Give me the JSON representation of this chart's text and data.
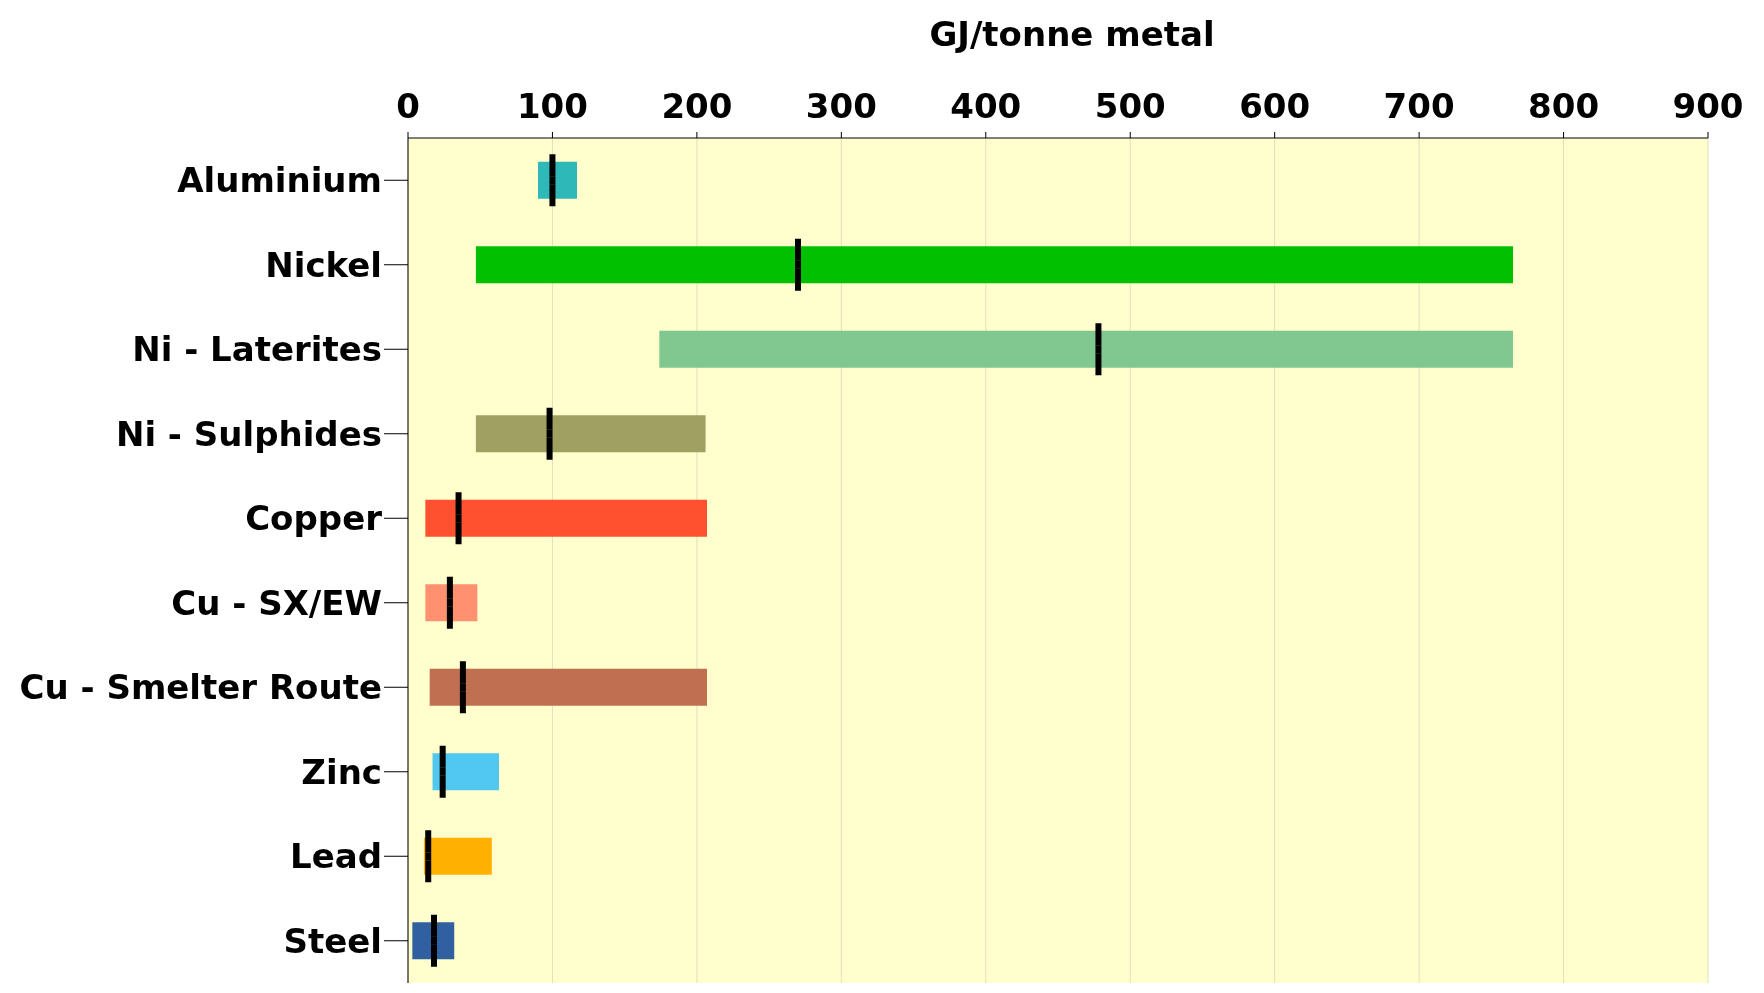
{
  "chart_data": {
    "type": "bar",
    "orientation": "horizontal",
    "xlabel": "GJ/tonne metal",
    "categories": [
      "Aluminium",
      "Nickel",
      "Ni - Laterites",
      "Ni - Sulphides",
      "Copper",
      "Cu - SX/EW",
      "Cu - Smelter Route",
      "Zinc",
      "Lead",
      "Steel"
    ],
    "series": [
      {
        "type": "bar",
        "base": [
          90,
          47,
          174,
          47,
          12,
          12,
          15,
          17,
          11,
          3
        ],
        "values": [
          27,
          718,
          591,
          159,
          195,
          36,
          192,
          46,
          47,
          29
        ],
        "colors": [
          "#2fb8b8",
          "#00c000",
          "#80c890",
          "#a0a060",
          "#ff5030",
          "#ff9070",
          "#c07050",
          "#50c8f0",
          "#ffb000",
          "#3060a0"
        ]
      },
      {
        "type": "scatter",
        "color": "#000000",
        "values": [
          100,
          270,
          478,
          98,
          35,
          29,
          38,
          24,
          14,
          18
        ]
      }
    ],
    "xlim": [
      0,
      900
    ],
    "xticks": [
      0,
      100,
      200,
      300,
      400,
      500,
      600,
      700,
      800,
      900
    ],
    "grid": "x"
  }
}
